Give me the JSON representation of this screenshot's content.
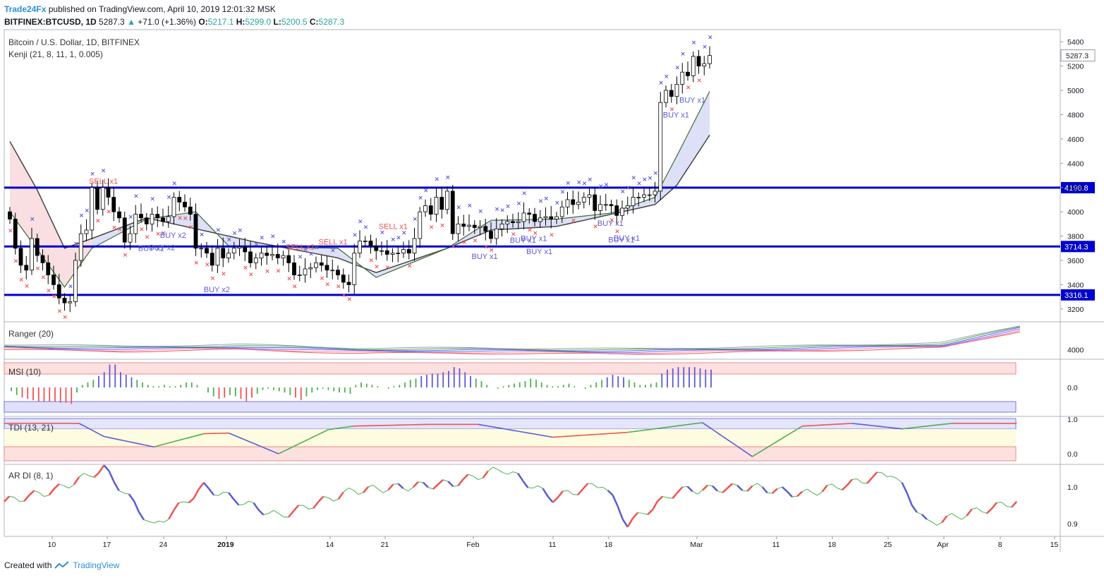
{
  "header": {
    "brand": "Trade24Fx",
    "published": "published on TradingView.com, April 10, 2019 12:01:32 MSK",
    "symbol": "BITFINEX:BTCUSD, 1D",
    "last": "5287.3",
    "change": "+71.0 (+1.36%)",
    "o_label": "O:",
    "o_val": "5217.1",
    "h_label": "H:",
    "h_val": "5299.0",
    "l_label": "L:",
    "l_val": "5200.5",
    "c_label": "C:",
    "c_val": "5287.3"
  },
  "footer": {
    "created_with": "Created with",
    "tradingview": "TradingView"
  },
  "colors": {
    "up_candle": "#ffffff",
    "down_candle": "#000000",
    "blue_line": "#0000cc",
    "buy_text": "#5b5bd6",
    "sell_text": "#ef5350",
    "cross_blue": "#5b5bd6",
    "cross_red": "#ef5350",
    "kenji_fill_red": "#f8d7da",
    "kenji_fill_blue": "#d6d8f5"
  },
  "chart_data": [
    {
      "type": "candlestick",
      "title": "Bitcoin / U.S. Dollar, 1D, BITFINEX",
      "indicator": "Kenji (21, 8, 11, 1, 0.005)",
      "ylim": [
        3100,
        5500
      ],
      "y_ticks": [
        3200,
        3400,
        3600,
        3800,
        4000,
        4200,
        4400,
        4600,
        4800,
        5000,
        5200,
        5400
      ],
      "x_ticks": [
        "10",
        "17",
        "24",
        "2019",
        "14",
        "21",
        "Feb",
        "11",
        "18",
        "Mar",
        "11",
        "18",
        "25",
        "Apr",
        "8",
        "15"
      ],
      "horizontal_levels": [
        {
          "label": "4198.8",
          "value": 4198.8
        },
        {
          "label": "3714.3",
          "value": 3714.3
        },
        {
          "label": "3316.1",
          "value": 3316.1
        }
      ],
      "last_price_label": "5287.3",
      "close": [
        3940,
        3700,
        3560,
        3520,
        3780,
        3640,
        3580,
        3480,
        3400,
        3290,
        3250,
        3260,
        3600,
        3820,
        3850,
        4200,
        4020,
        4200,
        4120,
        4000,
        3950,
        3750,
        3820,
        3980,
        3950,
        3900,
        3980,
        3950,
        3920,
        3960,
        4120,
        4080,
        4040,
        3980,
        3700,
        3700,
        3660,
        3560,
        3700,
        3620,
        3660,
        3700,
        3710,
        3670,
        3580,
        3620,
        3660,
        3640,
        3650,
        3620,
        3640,
        3580,
        3480,
        3480,
        3530,
        3540,
        3580,
        3560,
        3520,
        3520,
        3480,
        3420,
        3400,
        3660,
        3760,
        3760,
        3720,
        3680,
        3680,
        3650,
        3660,
        3660,
        3690,
        3660,
        3780,
        4000,
        4050,
        3980,
        4120,
        4020,
        4170,
        3820,
        3900,
        3880,
        3890,
        3870,
        3880,
        3840,
        3780,
        3860,
        3900,
        3920,
        3910,
        3920,
        3990,
        3980,
        3920,
        3950,
        3960,
        3940,
        3960,
        4040,
        4100,
        4060,
        4080,
        4120,
        4140,
        4010,
        4060,
        4060,
        4050,
        3970,
        4030,
        4050,
        4120,
        4120,
        4140,
        4140,
        4170,
        4900,
        5000,
        4950,
        5050,
        5150,
        5120,
        5280,
        5200,
        5220,
        5287
      ],
      "kenji_fast_sample": [
        [
          0,
          4000
        ],
        [
          10,
          3380
        ],
        [
          15,
          3700
        ],
        [
          25,
          3940
        ],
        [
          34,
          4000
        ],
        [
          40,
          3720
        ],
        [
          60,
          3700
        ],
        [
          67,
          3460
        ],
        [
          80,
          3700
        ],
        [
          88,
          3930
        ],
        [
          100,
          3940
        ],
        [
          110,
          3990
        ],
        [
          118,
          4120
        ],
        [
          122,
          4460
        ],
        [
          129,
          5080
        ]
      ],
      "kenji_slow_sample": [
        [
          0,
          4580
        ],
        [
          5,
          4180
        ],
        [
          10,
          3700
        ],
        [
          15,
          3780
        ],
        [
          25,
          3950
        ],
        [
          30,
          3900
        ],
        [
          45,
          3750
        ],
        [
          60,
          3620
        ],
        [
          67,
          3500
        ],
        [
          80,
          3700
        ],
        [
          88,
          3850
        ],
        [
          100,
          3880
        ],
        [
          118,
          4060
        ],
        [
          122,
          4220
        ],
        [
          129,
          4700
        ]
      ],
      "signals": [
        {
          "label": "SELL x1",
          "side": "sell",
          "bar": 16
        },
        {
          "label": "BUY x2",
          "side": "buy",
          "bar": 25
        },
        {
          "label": "BUY x2",
          "side": "buy",
          "bar": 27
        },
        {
          "label": "BUY x2",
          "side": "buy",
          "bar": 29
        },
        {
          "label": "BUY x2",
          "side": "buy",
          "bar": 37
        },
        {
          "label": "SELL x1",
          "side": "sell",
          "bar": 52
        },
        {
          "label": "SELL x1",
          "side": "sell",
          "bar": 58
        },
        {
          "label": "SELL x1",
          "side": "sell",
          "bar": 69
        },
        {
          "label": "BUY x1",
          "side": "buy",
          "bar": 86
        },
        {
          "label": "BUY x1",
          "side": "buy",
          "bar": 93
        },
        {
          "label": "BUY x1",
          "side": "buy",
          "bar": 95
        },
        {
          "label": "BUY x1",
          "side": "buy",
          "bar": 96
        },
        {
          "label": "BUY x1",
          "side": "buy",
          "bar": 109
        },
        {
          "label": "BUY x1",
          "side": "buy",
          "bar": 111
        },
        {
          "label": "BUY x1",
          "side": "buy",
          "bar": 112
        },
        {
          "label": "BUY x1",
          "side": "buy",
          "bar": 121
        },
        {
          "label": "BUY x1",
          "side": "buy",
          "bar": 124
        },
        {
          "label": "BUY x1",
          "side": "buy",
          "bar": 131
        }
      ]
    },
    {
      "type": "line",
      "title": "Ranger (20)",
      "y_ticks": [
        4000
      ],
      "series_sample": [
        [
          0,
          4030
        ],
        [
          15,
          4010
        ],
        [
          30,
          4030
        ],
        [
          45,
          3990
        ],
        [
          60,
          3990
        ],
        [
          80,
          3980
        ],
        [
          100,
          4010
        ],
        [
          120,
          4050
        ],
        [
          130,
          4240
        ]
      ]
    },
    {
      "type": "bar",
      "title": "MSI (10)",
      "y_ticks": [
        0.0
      ],
      "ylim": [
        -1,
        1
      ],
      "values": [
        -0.15,
        -0.3,
        -0.4,
        -0.45,
        -0.5,
        -0.55,
        -0.55,
        -0.55,
        -0.55,
        -0.6,
        -0.6,
        -0.65,
        -0.2,
        0.1,
        0.2,
        0.3,
        0.45,
        0.6,
        0.9,
        0.9,
        0.6,
        0.5,
        0.4,
        0.3,
        0.2,
        0.1,
        0.05,
        0.05,
        0.1,
        0.05,
        0.05,
        0.1,
        0.2,
        0.2,
        0.1,
        0.0,
        -0.2,
        -0.35,
        -0.45,
        -0.4,
        -0.3,
        -0.35,
        -0.45,
        -0.55,
        -0.4,
        -0.25,
        -0.1,
        -0.05,
        -0.1,
        -0.15,
        -0.2,
        -0.3,
        -0.4,
        -0.5,
        -0.35,
        -0.2,
        -0.1,
        -0.05,
        -0.1,
        -0.15,
        -0.2,
        -0.2,
        -0.25,
        0.1,
        0.2,
        0.15,
        0.1,
        0.05,
        0.0,
        -0.05,
        0.05,
        0.1,
        0.2,
        0.3,
        0.35,
        0.45,
        0.5,
        0.55,
        0.55,
        0.6,
        0.65,
        0.8,
        0.75,
        0.6,
        0.45,
        0.35,
        0.25,
        0.1,
        0.0,
        -0.05,
        0.05,
        0.1,
        0.15,
        0.2,
        0.25,
        0.35,
        0.3,
        0.2,
        0.1,
        0.05,
        0.05,
        0.1,
        0.15,
        0.05,
        0.0,
        -0.05,
        0.1,
        0.2,
        0.3,
        0.4,
        0.5,
        0.45,
        0.4,
        0.3,
        0.2,
        0.1,
        0.1,
        0.15,
        0.2,
        0.55,
        0.7,
        0.75,
        0.8,
        0.8,
        0.8,
        0.8,
        0.75,
        0.7,
        0.7
      ]
    },
    {
      "type": "line",
      "title": "TDI (13, 21)",
      "y_ticks": [
        1.0,
        0.0
      ],
      "ylim": [
        -0.2,
        1.1
      ],
      "series_sample": [
        [
          0,
          0.88
        ],
        [
          15,
          0.88
        ],
        [
          20,
          0.5
        ],
        [
          30,
          0.2
        ],
        [
          40,
          0.58
        ],
        [
          45,
          0.6
        ],
        [
          55,
          0.0
        ],
        [
          65,
          0.7
        ],
        [
          70,
          0.8
        ],
        [
          85,
          0.85
        ],
        [
          95,
          0.85
        ],
        [
          110,
          0.48
        ],
        [
          125,
          0.62
        ],
        [
          140,
          0.9
        ],
        [
          150,
          -0.08
        ],
        [
          160,
          0.8
        ],
        [
          170,
          0.88
        ],
        [
          180,
          0.72
        ],
        [
          190,
          0.88
        ],
        [
          203,
          0.88
        ]
      ]
    },
    {
      "type": "line",
      "title": "AR DI (8, 1)",
      "y_ticks": [
        1.0,
        0.9
      ],
      "ylim": [
        0.86,
        1.07
      ],
      "series_sample": [
        [
          0,
          0.96
        ],
        [
          10,
          0.99
        ],
        [
          20,
          1.05
        ],
        [
          30,
          0.89
        ],
        [
          40,
          1.0
        ],
        [
          55,
          0.92
        ],
        [
          70,
          0.99
        ],
        [
          80,
          1.0
        ],
        [
          90,
          1.01
        ],
        [
          100,
          1.05
        ],
        [
          110,
          0.97
        ],
        [
          120,
          1.01
        ],
        [
          125,
          0.9
        ],
        [
          135,
          0.99
        ],
        [
          150,
          1.0
        ],
        [
          160,
          0.98
        ],
        [
          170,
          1.01
        ],
        [
          178,
          1.04
        ],
        [
          185,
          0.9
        ],
        [
          203,
          0.96
        ]
      ]
    }
  ]
}
